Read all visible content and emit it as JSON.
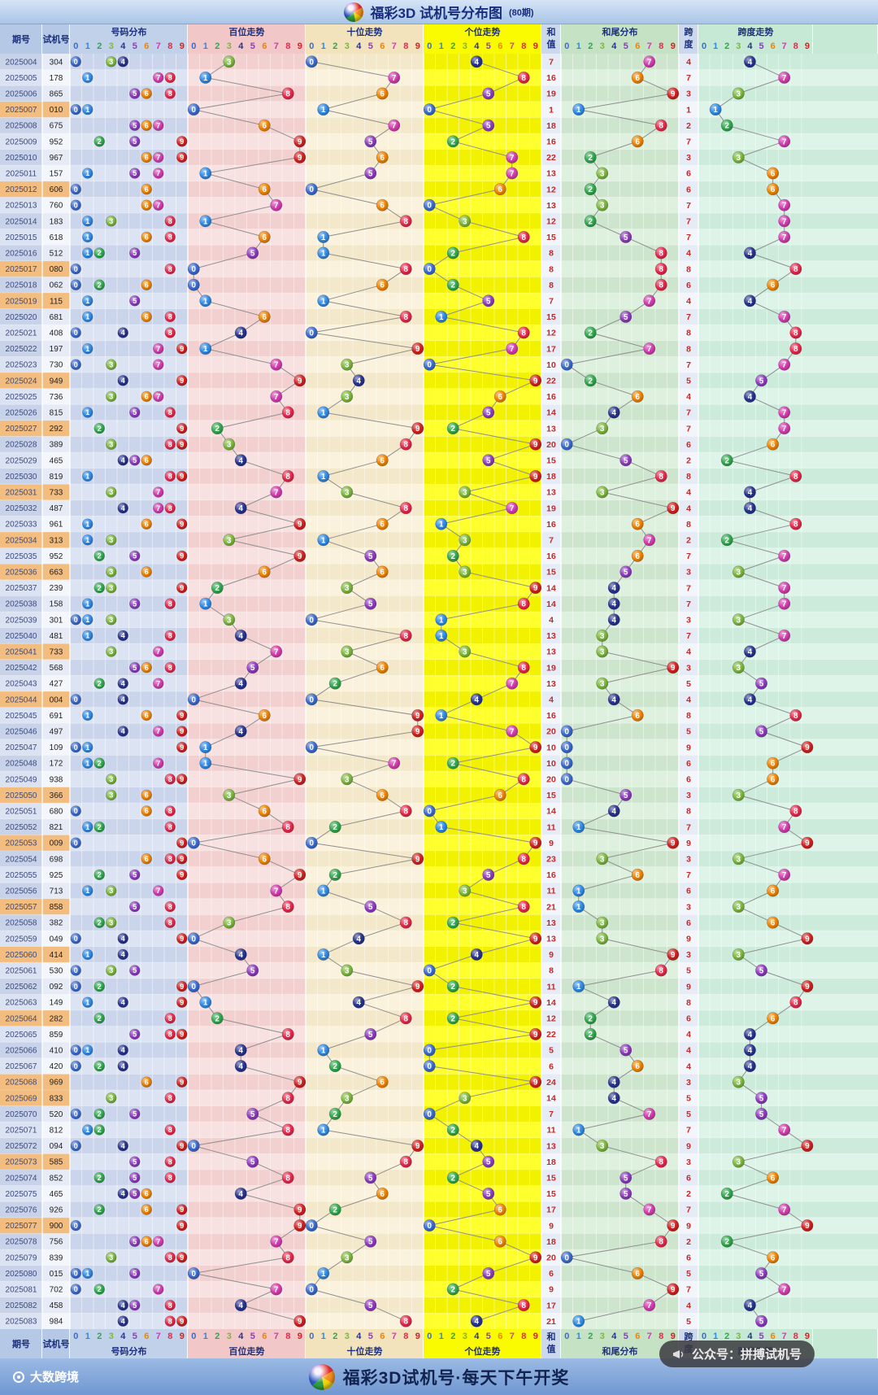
{
  "header": {
    "title": "福彩3D 试机号分布图",
    "subtitle": "(80期)"
  },
  "footer": {
    "brand": "大数跨境",
    "center": "福彩3D试机号·每天下午开奖",
    "right": "公众号：拼搏试机号"
  },
  "columns": {
    "period": "期号",
    "trial": "试机号",
    "num_dist": "号码分布",
    "hundreds": "百位走势",
    "tens": "十位走势",
    "units": "个位走势",
    "sum": [
      "和",
      "值"
    ],
    "sum_tail": "和尾分布",
    "span": [
      "跨",
      "度"
    ],
    "span_trend": "跨度走势",
    "digits": [
      "0",
      "1",
      "2",
      "3",
      "4",
      "5",
      "6",
      "7",
      "8",
      "9"
    ]
  },
  "digit_colors": [
    "#3b6bd0",
    "#2e8ae6",
    "#2fa84c",
    "#7cb83d",
    "#27338f",
    "#8e3bbf",
    "#f08300",
    "#d43bb0",
    "#e8274b",
    "#d32020"
  ],
  "group3_highlight": "#f3bd80",
  "value_color": "#c62828",
  "chart_data": {
    "type": "table",
    "title": "福彩3D 试机号分布图 (80期)",
    "row_fields": [
      "period",
      "trial_number",
      "sum",
      "span"
    ],
    "notes": "sum tail plotted in 和尾分布 = sum % 10; trial digits plotted in 百位/十位/个位走势; rows with a repeated digit are highlighted orange",
    "rows": [
      [
        "2025004",
        "304",
        7,
        4
      ],
      [
        "2025005",
        "178",
        16,
        7
      ],
      [
        "2025006",
        "865",
        19,
        3
      ],
      [
        "2025007",
        "010",
        1,
        1
      ],
      [
        "2025008",
        "675",
        18,
        2
      ],
      [
        "2025009",
        "952",
        16,
        7
      ],
      [
        "2025010",
        "967",
        22,
        3
      ],
      [
        "2025011",
        "157",
        13,
        6
      ],
      [
        "2025012",
        "606",
        12,
        6
      ],
      [
        "2025013",
        "760",
        13,
        7
      ],
      [
        "2025014",
        "183",
        12,
        7
      ],
      [
        "2025015",
        "618",
        15,
        7
      ],
      [
        "2025016",
        "512",
        8,
        4
      ],
      [
        "2025017",
        "080",
        8,
        8
      ],
      [
        "2025018",
        "062",
        8,
        6
      ],
      [
        "2025019",
        "115",
        7,
        4
      ],
      [
        "2025020",
        "681",
        15,
        7
      ],
      [
        "2025021",
        "408",
        12,
        8
      ],
      [
        "2025022",
        "197",
        17,
        8
      ],
      [
        "2025023",
        "730",
        10,
        7
      ],
      [
        "2025024",
        "949",
        22,
        5
      ],
      [
        "2025025",
        "736",
        16,
        4
      ],
      [
        "2025026",
        "815",
        14,
        7
      ],
      [
        "2025027",
        "292",
        13,
        7
      ],
      [
        "2025028",
        "389",
        20,
        6
      ],
      [
        "2025029",
        "465",
        15,
        2
      ],
      [
        "2025030",
        "819",
        18,
        8
      ],
      [
        "2025031",
        "733",
        13,
        4
      ],
      [
        "2025032",
        "487",
        19,
        4
      ],
      [
        "2025033",
        "961",
        16,
        8
      ],
      [
        "2025034",
        "313",
        7,
        2
      ],
      [
        "2025035",
        "952",
        16,
        7
      ],
      [
        "2025036",
        "663",
        15,
        3
      ],
      [
        "2025037",
        "239",
        14,
        7
      ],
      [
        "2025038",
        "158",
        14,
        7
      ],
      [
        "2025039",
        "301",
        4,
        3
      ],
      [
        "2025040",
        "481",
        13,
        7
      ],
      [
        "2025041",
        "733",
        13,
        4
      ],
      [
        "2025042",
        "568",
        19,
        3
      ],
      [
        "2025043",
        "427",
        13,
        5
      ],
      [
        "2025044",
        "004",
        4,
        4
      ],
      [
        "2025045",
        "691",
        16,
        8
      ],
      [
        "2025046",
        "497",
        20,
        5
      ],
      [
        "2025047",
        "109",
        10,
        9
      ],
      [
        "2025048",
        "172",
        10,
        6
      ],
      [
        "2025049",
        "938",
        20,
        6
      ],
      [
        "2025050",
        "366",
        15,
        3
      ],
      [
        "2025051",
        "680",
        14,
        8
      ],
      [
        "2025052",
        "821",
        11,
        7
      ],
      [
        "2025053",
        "009",
        9,
        9
      ],
      [
        "2025054",
        "698",
        23,
        3
      ],
      [
        "2025055",
        "925",
        16,
        7
      ],
      [
        "2025056",
        "713",
        11,
        6
      ],
      [
        "2025057",
        "858",
        21,
        3
      ],
      [
        "2025058",
        "382",
        13,
        6
      ],
      [
        "2025059",
        "049",
        13,
        9
      ],
      [
        "2025060",
        "414",
        9,
        3
      ],
      [
        "2025061",
        "530",
        8,
        5
      ],
      [
        "2025062",
        "092",
        11,
        9
      ],
      [
        "2025063",
        "149",
        14,
        8
      ],
      [
        "2025064",
        "282",
        12,
        6
      ],
      [
        "2025065",
        "859",
        22,
        4
      ],
      [
        "2025066",
        "410",
        5,
        4
      ],
      [
        "2025067",
        "420",
        6,
        4
      ],
      [
        "2025068",
        "969",
        24,
        3
      ],
      [
        "2025069",
        "833",
        14,
        5
      ],
      [
        "2025070",
        "520",
        7,
        5
      ],
      [
        "2025071",
        "812",
        11,
        7
      ],
      [
        "2025072",
        "094",
        13,
        9
      ],
      [
        "2025073",
        "585",
        18,
        3
      ],
      [
        "2025074",
        "852",
        15,
        6
      ],
      [
        "2025075",
        "465",
        15,
        2
      ],
      [
        "2025076",
        "926",
        17,
        7
      ],
      [
        "2025077",
        "900",
        9,
        9
      ],
      [
        "2025078",
        "756",
        18,
        2
      ],
      [
        "2025079",
        "839",
        20,
        6
      ],
      [
        "2025080",
        "015",
        6,
        5
      ],
      [
        "2025081",
        "702",
        9,
        7
      ],
      [
        "2025082",
        "458",
        17,
        4
      ],
      [
        "2025083",
        "984",
        21,
        5
      ]
    ]
  }
}
